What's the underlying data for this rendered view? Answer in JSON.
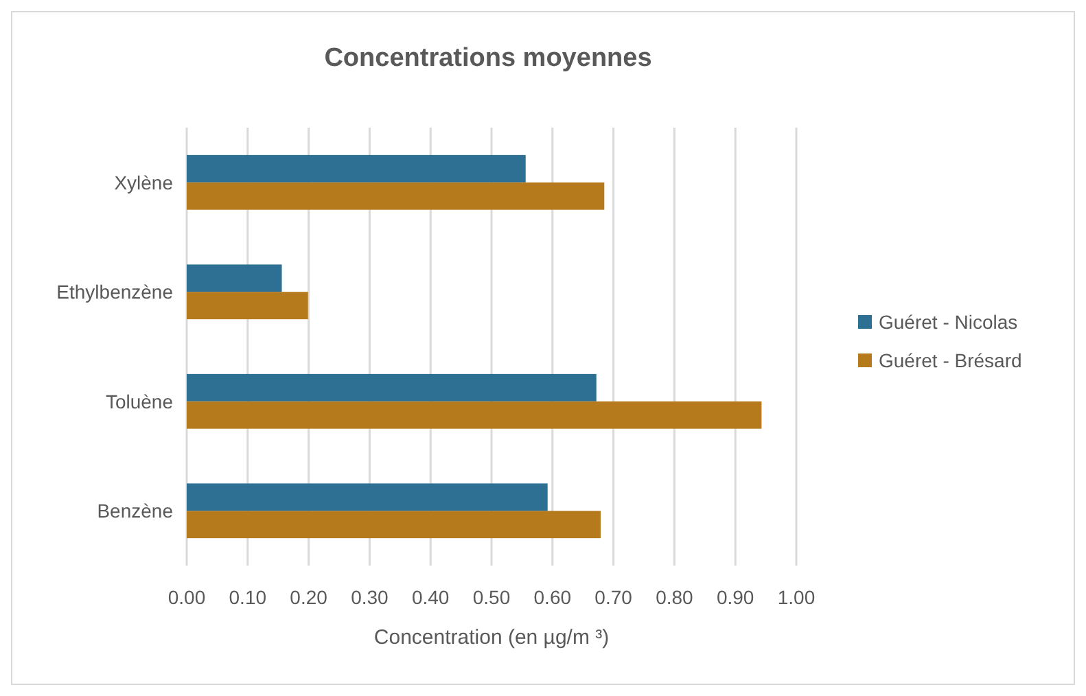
{
  "chart_data": {
    "type": "bar",
    "orientation": "horizontal",
    "title": "Concentrations moyennes",
    "xlabel": "Concentration (en µg/m ³)",
    "categories": [
      "Xylène",
      "Ethylbenzène",
      "Toluène",
      "Benzène"
    ],
    "series": [
      {
        "name": "Guéret - Nicolas",
        "color": "#2e7094",
        "values": [
          0.556,
          0.156,
          0.672,
          0.592
        ]
      },
      {
        "name": "Guéret - Brésard",
        "color": "#b57a1c",
        "values": [
          0.685,
          0.199,
          0.943,
          0.679
        ]
      }
    ],
    "xlim": [
      0,
      1
    ],
    "xticks": [
      {
        "value": 0,
        "label": "0.00"
      },
      {
        "value": 0.1,
        "label": "0.10"
      },
      {
        "value": 0.2,
        "label": "0.20"
      },
      {
        "value": 0.3,
        "label": "0.30"
      },
      {
        "value": 0.4,
        "label": "0.40"
      },
      {
        "value": 0.5,
        "label": "0.50"
      },
      {
        "value": 0.6,
        "label": "0.60"
      },
      {
        "value": 0.7,
        "label": "0.70"
      },
      {
        "value": 0.8,
        "label": "0.80"
      },
      {
        "value": 0.9,
        "label": "0.90"
      },
      {
        "value": 1,
        "label": "1.00"
      }
    ],
    "grid": "x",
    "legend": "right"
  }
}
